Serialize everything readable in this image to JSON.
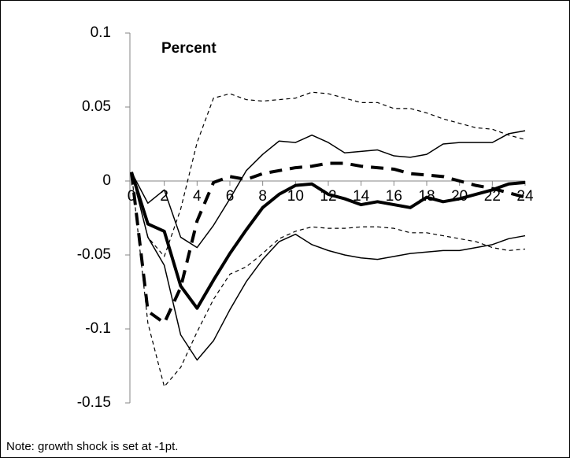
{
  "chart_data": {
    "type": "line",
    "annotation": "Percent",
    "note": "Note: growth shock is set at -1pt.",
    "x": [
      0,
      1,
      2,
      3,
      4,
      5,
      6,
      7,
      8,
      9,
      10,
      11,
      12,
      13,
      14,
      15,
      16,
      17,
      18,
      19,
      20,
      21,
      22,
      23,
      24
    ],
    "xlim": [
      0,
      24
    ],
    "xticks": [
      0,
      2,
      4,
      6,
      8,
      10,
      12,
      14,
      16,
      18,
      20,
      22,
      24
    ],
    "ylim": [
      -0.15,
      0.1
    ],
    "yticks": [
      0.1,
      0.05,
      0,
      -0.05,
      -0.1,
      -0.15
    ],
    "series": [
      {
        "color": "#000000",
        "width": 1.2,
        "dash": "5,4",
        "values": [
          0.006,
          -0.038,
          -0.051,
          -0.019,
          0.026,
          0.056,
          0.059,
          0.055,
          0.054,
          0.055,
          0.056,
          0.06,
          0.059,
          0.056,
          0.053,
          0.053,
          0.049,
          0.049,
          0.046,
          0.042,
          0.039,
          0.036,
          0.035,
          0.031,
          0.028
        ]
      },
      {
        "color": "#000000",
        "width": 1.2,
        "dash": "5,4",
        "values": [
          0.006,
          -0.096,
          -0.139,
          -0.126,
          -0.102,
          -0.08,
          -0.063,
          -0.058,
          -0.049,
          -0.039,
          -0.034,
          -0.031,
          -0.032,
          -0.032,
          -0.031,
          -0.031,
          -0.032,
          -0.035,
          -0.035,
          -0.037,
          -0.039,
          -0.041,
          -0.045,
          -0.047,
          -0.046
        ]
      },
      {
        "color": "#000000",
        "width": 1.5,
        "dash": "none",
        "values": [
          0.006,
          -0.015,
          -0.006,
          -0.038,
          -0.045,
          -0.03,
          -0.012,
          0.007,
          0.018,
          0.027,
          0.026,
          0.031,
          0.026,
          0.019,
          0.02,
          0.021,
          0.017,
          0.016,
          0.018,
          0.025,
          0.026,
          0.026,
          0.026,
          0.032,
          0.034
        ]
      },
      {
        "color": "#000000",
        "width": 1.5,
        "dash": "none",
        "values": [
          0.006,
          -0.038,
          -0.057,
          -0.104,
          -0.121,
          -0.108,
          -0.087,
          -0.068,
          -0.053,
          -0.041,
          -0.036,
          -0.043,
          -0.047,
          -0.05,
          -0.052,
          -0.053,
          -0.051,
          -0.049,
          -0.048,
          -0.047,
          -0.047,
          -0.045,
          -0.043,
          -0.039,
          -0.037
        ]
      },
      {
        "color": "#000000",
        "width": 4,
        "dash": "16,10",
        "values": [
          0.006,
          -0.088,
          -0.096,
          -0.072,
          -0.027,
          -0.001,
          0.003,
          0.001,
          0.005,
          0.007,
          0.009,
          0.01,
          0.012,
          0.012,
          0.01,
          0.009,
          0.008,
          0.005,
          0.004,
          0.003,
          0,
          -0.003,
          -0.005,
          -0.008,
          -0.011
        ]
      },
      {
        "color": "#000000",
        "width": 4,
        "dash": "none",
        "values": [
          0.006,
          -0.029,
          -0.034,
          -0.071,
          -0.086,
          -0.067,
          -0.049,
          -0.033,
          -0.018,
          -0.009,
          -0.003,
          -0.002,
          -0.009,
          -0.012,
          -0.016,
          -0.014,
          -0.016,
          -0.018,
          -0.011,
          -0.014,
          -0.012,
          -0.009,
          -0.006,
          -0.002,
          -0.001
        ]
      }
    ]
  }
}
